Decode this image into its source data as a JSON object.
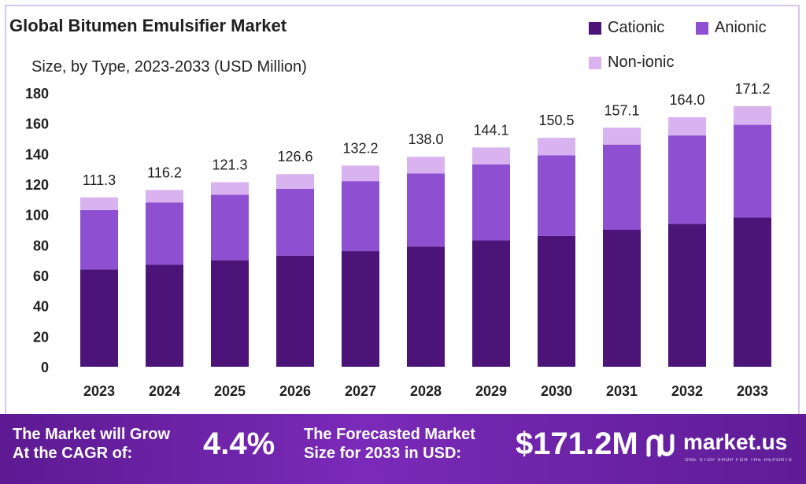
{
  "chart_data": {
    "type": "bar",
    "stacked": true,
    "title": "Global Bitumen Emulsifier Market",
    "subtitle": "Size, by Type, 2023-2033 (USD Million)",
    "categories": [
      "2023",
      "2024",
      "2025",
      "2026",
      "2027",
      "2028",
      "2029",
      "2030",
      "2031",
      "2032",
      "2033"
    ],
    "series": [
      {
        "name": "Cationic",
        "color": "#4c1379",
        "values": [
          64,
          67,
          70,
          73,
          76,
          79,
          83,
          86,
          90,
          94,
          98
        ]
      },
      {
        "name": "Anionic",
        "color": "#8e4fd1",
        "values": [
          39,
          41,
          43,
          44,
          46,
          48,
          50,
          53,
          56,
          58,
          61
        ]
      },
      {
        "name": "Non-ionic",
        "color": "#d9b2f0",
        "values": [
          8.3,
          8.2,
          8.3,
          9.6,
          10.2,
          11,
          11.1,
          11.5,
          11.1,
          12,
          12.2
        ]
      }
    ],
    "totals": [
      111.3,
      116.2,
      121.3,
      126.6,
      132.2,
      138.0,
      144.1,
      150.5,
      157.1,
      164.0,
      171.2
    ],
    "total_labels": [
      "111.3",
      "116.2",
      "121.3",
      "126.6",
      "132.2",
      "138.0",
      "144.1",
      "150.5",
      "157.1",
      "164.0",
      "171.2"
    ],
    "y_ticks": [
      "0",
      "20",
      "40",
      "60",
      "80",
      "100",
      "120",
      "140",
      "160",
      "180"
    ],
    "ylim": [
      0,
      180
    ],
    "grid": false,
    "legend_position": "top-right"
  },
  "footer": {
    "cagr_label_line1": "The Market will Grow",
    "cagr_label_line2": "At the CAGR of:",
    "cagr_value": "4.4%",
    "forecast_label_line1": "The Forecasted Market",
    "forecast_label_line2": "Size for 2033 in USD:",
    "forecast_value": "$171.2M",
    "brand_name": "market.us",
    "brand_tagline": "ONE STOP SHOP FOR THE REPORTS"
  },
  "colors": {
    "footer_bg": "#6a22a6",
    "cationic": "#4c1379",
    "anionic": "#8e4fd1",
    "non_ionic": "#d9b2f0"
  }
}
